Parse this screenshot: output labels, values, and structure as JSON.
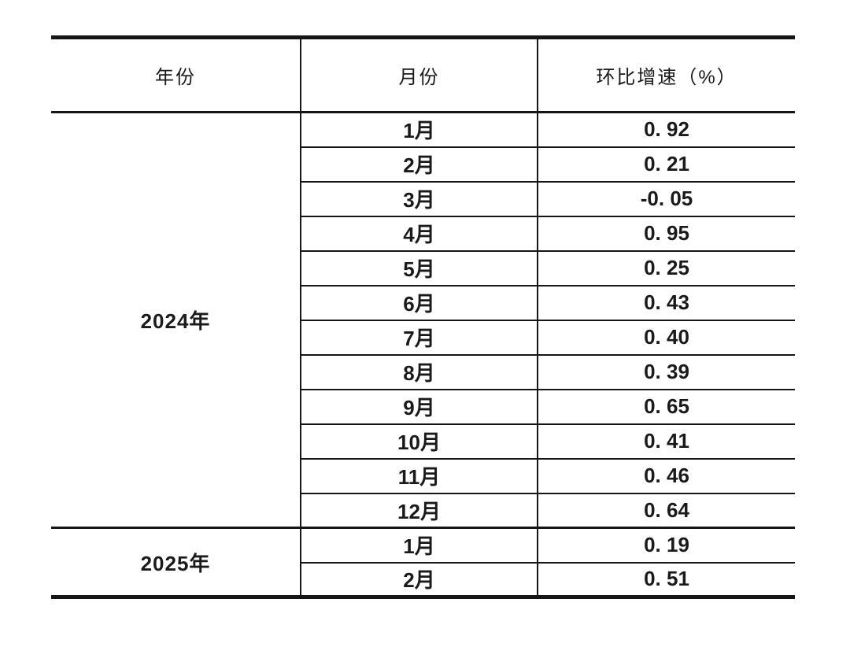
{
  "document": {
    "colors": {
      "background": "#ffffff",
      "line": "#161616",
      "text": "#1a1a1a"
    },
    "table": {
      "headers": {
        "year": "年份",
        "month": "月份",
        "growth": "环比增速（%）"
      },
      "sections": [
        {
          "year": "2024年",
          "rows": [
            {
              "month": "1月",
              "growth": "0. 92"
            },
            {
              "month": "2月",
              "growth": "0. 21"
            },
            {
              "month": "3月",
              "growth": "-0. 05"
            },
            {
              "month": "4月",
              "growth": "0. 95"
            },
            {
              "month": "5月",
              "growth": "0. 25"
            },
            {
              "month": "6月",
              "growth": "0. 43"
            },
            {
              "month": "7月",
              "growth": "0. 40"
            },
            {
              "month": "8月",
              "growth": "0. 39"
            },
            {
              "month": "9月",
              "growth": "0. 65"
            },
            {
              "month": "10月",
              "growth": "0. 41"
            },
            {
              "month": "11月",
              "growth": "0. 46"
            },
            {
              "month": "12月",
              "growth": "0. 64"
            }
          ]
        },
        {
          "year": "2025年",
          "rows": [
            {
              "month": "1月",
              "growth": "0. 19"
            },
            {
              "month": "2月",
              "growth": "0. 51"
            }
          ]
        }
      ]
    }
  }
}
